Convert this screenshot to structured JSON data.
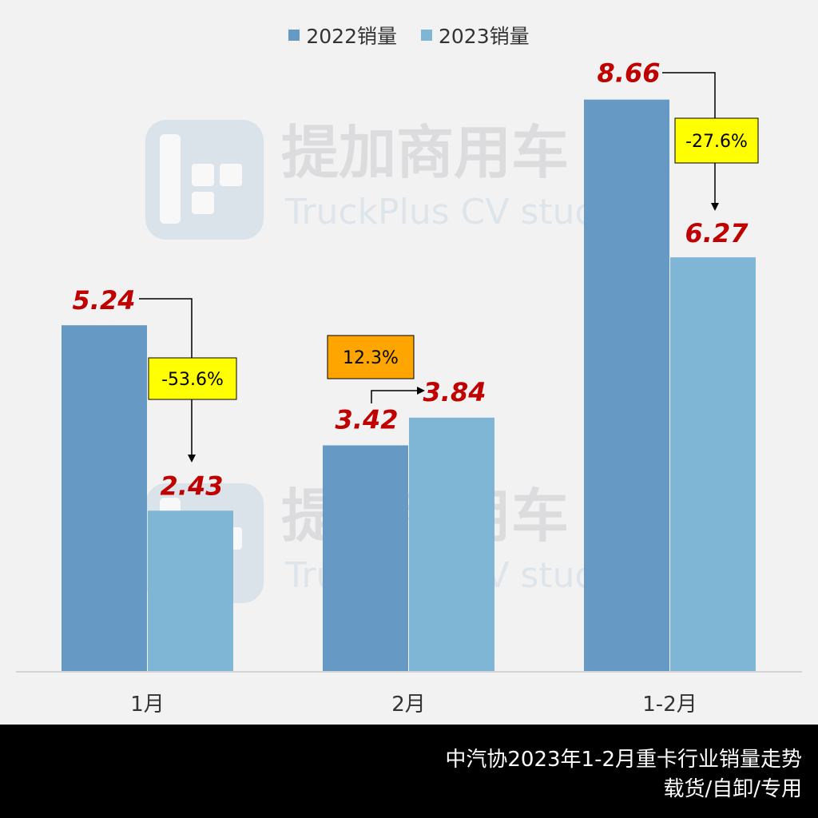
{
  "watermark": {
    "brand_cn": "提加商用车",
    "brand_en": "TruckPlus CV studio"
  },
  "chart_data": {
    "type": "bar",
    "categories": [
      "1月",
      "2月",
      "1-2月"
    ],
    "series": [
      {
        "name": "2022销量",
        "values": [
          5.24,
          3.42,
          8.66
        ],
        "color": "#6699c4"
      },
      {
        "name": "2023销量",
        "values": [
          2.43,
          3.84,
          6.27
        ],
        "color": "#7fb6d6"
      }
    ],
    "value_label_color": "#c00000",
    "ylim": [
      0,
      10
    ],
    "grid": false,
    "legend": "top-center",
    "annotations": [
      {
        "category": "1月",
        "text": "-53.6%",
        "box_color": "#ffff00",
        "direction": "down"
      },
      {
        "category": "2月",
        "text": "12.3%",
        "box_color": "#ffa500",
        "direction": "up"
      },
      {
        "category": "1-2月",
        "text": "-27.6%",
        "box_color": "#ffff00",
        "direction": "down"
      }
    ]
  },
  "footer": {
    "line1": "中汽协2023年1-2月重卡行业销量走势",
    "line2": "载货/自卸/专用"
  }
}
